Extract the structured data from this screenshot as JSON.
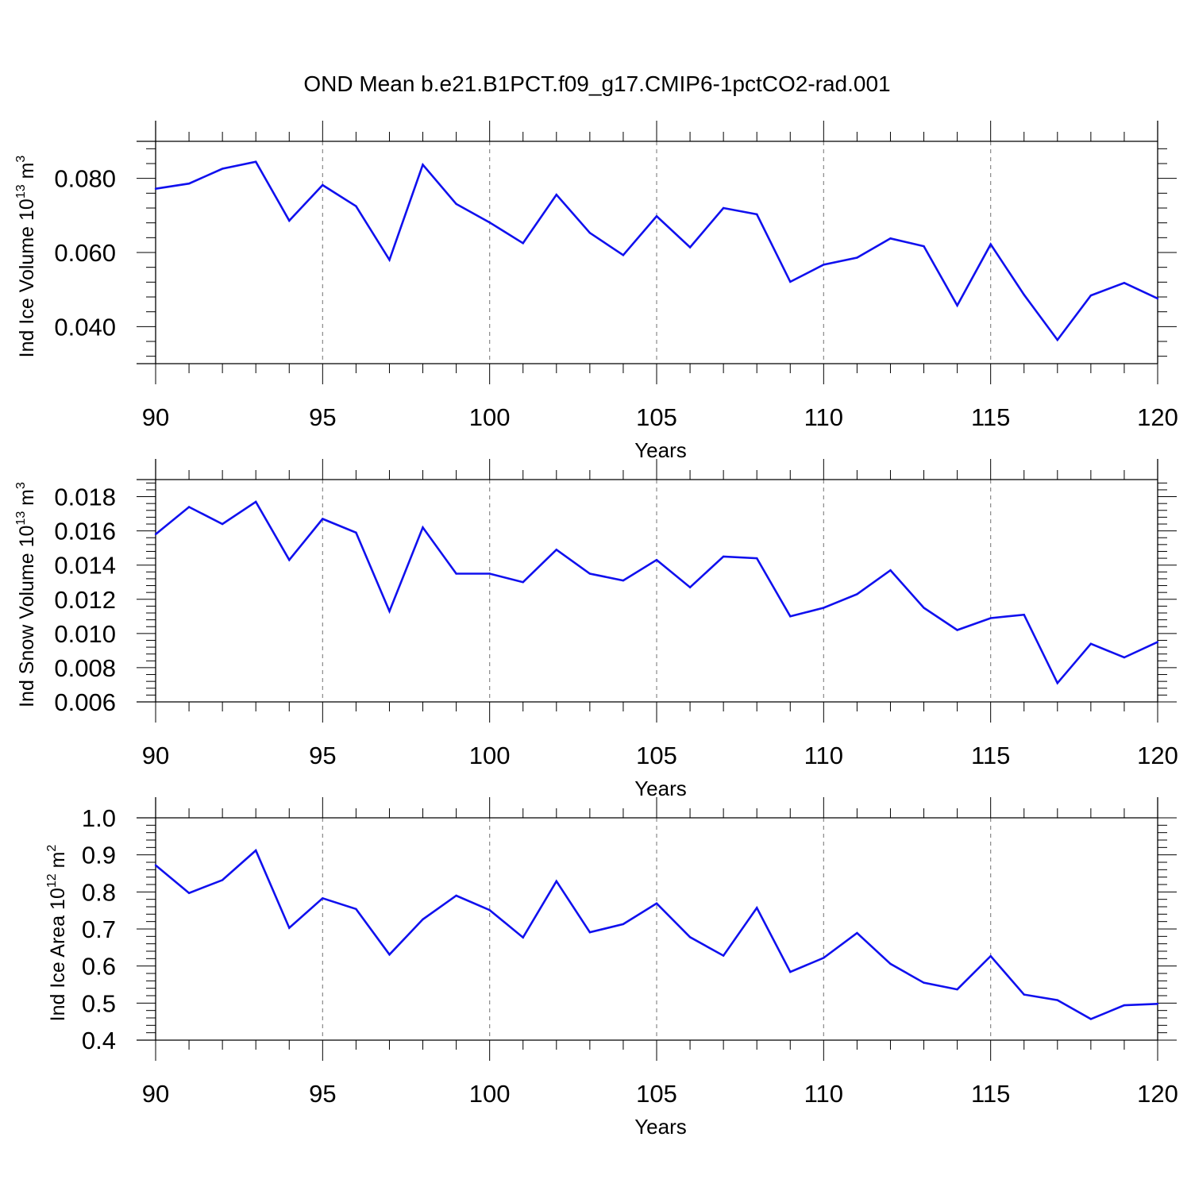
{
  "title": "OND Mean b.e21.B1PCT.f09_g17.CMIP6-1pctCO2-rad.001",
  "colors": {
    "line": "#1010ee",
    "axes": "#000000",
    "grid": "#888888"
  },
  "chart_data": [
    {
      "type": "line",
      "ylabel": "Ind Ice Volume 10",
      "ylabel_exp": "13",
      "ylabel_unit": " m",
      "ylabel_unit_exp": "3",
      "xlabel": "Years",
      "xlim": [
        90,
        120
      ],
      "ylim": [
        0.03,
        0.09
      ],
      "xticks": [
        90,
        95,
        100,
        105,
        110,
        115,
        120
      ],
      "xtick_labels": [
        "90",
        "95",
        "100",
        "105",
        "110",
        "115",
        "120"
      ],
      "yticks": [
        0.04,
        0.06,
        0.08
      ],
      "ytick_labels": [
        "0.040",
        "0.060",
        "0.080"
      ],
      "x": [
        90,
        91,
        92,
        93,
        94,
        95,
        96,
        97,
        98,
        99,
        100,
        101,
        102,
        103,
        104,
        105,
        106,
        107,
        108,
        109,
        110,
        111,
        112,
        113,
        114,
        115,
        116,
        117,
        118,
        119,
        120
      ],
      "series": [
        {
          "values": [
            0.0772,
            0.0786,
            0.0826,
            0.0845,
            0.0686,
            0.0782,
            0.0725,
            0.058,
            0.0837,
            0.0731,
            0.0681,
            0.0625,
            0.0756,
            0.0653,
            0.0593,
            0.0698,
            0.0614,
            0.072,
            0.0703,
            0.0521,
            0.0567,
            0.0586,
            0.0638,
            0.0617,
            0.0457,
            0.0622,
            0.0486,
            0.0364,
            0.0484,
            0.0518,
            0.0476
          ]
        }
      ]
    },
    {
      "type": "line",
      "ylabel": "Ind Snow Volume 10",
      "ylabel_exp": "13",
      "ylabel_unit": " m",
      "ylabel_unit_exp": "3",
      "xlabel": "Years",
      "xlim": [
        90,
        120
      ],
      "ylim": [
        0.006,
        0.019
      ],
      "xticks": [
        90,
        95,
        100,
        105,
        110,
        115,
        120
      ],
      "xtick_labels": [
        "90",
        "95",
        "100",
        "105",
        "110",
        "115",
        "120"
      ],
      "yticks": [
        0.006,
        0.008,
        0.01,
        0.012,
        0.014,
        0.016,
        0.018
      ],
      "ytick_labels": [
        "0.006",
        "0.008",
        "0.010",
        "0.012",
        "0.014",
        "0.016",
        "0.018"
      ],
      "x": [
        90,
        91,
        92,
        93,
        94,
        95,
        96,
        97,
        98,
        99,
        100,
        101,
        102,
        103,
        104,
        105,
        106,
        107,
        108,
        109,
        110,
        111,
        112,
        113,
        114,
        115,
        116,
        117,
        118,
        119,
        120
      ],
      "series": [
        {
          "values": [
            0.0158,
            0.0174,
            0.0164,
            0.0177,
            0.0143,
            0.0167,
            0.0159,
            0.0113,
            0.0162,
            0.0135,
            0.0135,
            0.013,
            0.0149,
            0.0135,
            0.0131,
            0.0143,
            0.0127,
            0.0145,
            0.0144,
            0.011,
            0.0115,
            0.0123,
            0.0137,
            0.0115,
            0.0102,
            0.0109,
            0.0111,
            0.0071,
            0.0094,
            0.0086,
            0.0095
          ]
        }
      ]
    },
    {
      "type": "line",
      "ylabel": "Ind Ice Area 10",
      "ylabel_exp": "12",
      "ylabel_unit": " m",
      "ylabel_unit_exp": "2",
      "xlabel": "Years",
      "xlim": [
        90,
        120
      ],
      "ylim": [
        0.4,
        1.0
      ],
      "xticks": [
        90,
        95,
        100,
        105,
        110,
        115,
        120
      ],
      "xtick_labels": [
        "90",
        "95",
        "100",
        "105",
        "110",
        "115",
        "120"
      ],
      "yticks": [
        0.4,
        0.5,
        0.6,
        0.7,
        0.8,
        0.9,
        1.0
      ],
      "ytick_labels": [
        "0.4",
        "0.5",
        "0.6",
        "0.7",
        "0.8",
        "0.9",
        "1.0"
      ],
      "x": [
        90,
        91,
        92,
        93,
        94,
        95,
        96,
        97,
        98,
        99,
        100,
        101,
        102,
        103,
        104,
        105,
        106,
        107,
        108,
        109,
        110,
        111,
        112,
        113,
        114,
        115,
        116,
        117,
        118,
        119,
        120
      ],
      "series": [
        {
          "values": [
            0.872,
            0.797,
            0.832,
            0.912,
            0.703,
            0.783,
            0.754,
            0.631,
            0.726,
            0.79,
            0.751,
            0.677,
            0.829,
            0.691,
            0.713,
            0.769,
            0.678,
            0.628,
            0.757,
            0.584,
            0.622,
            0.689,
            0.606,
            0.555,
            0.537,
            0.627,
            0.523,
            0.508,
            0.457,
            0.494,
            0.498
          ]
        }
      ]
    }
  ]
}
